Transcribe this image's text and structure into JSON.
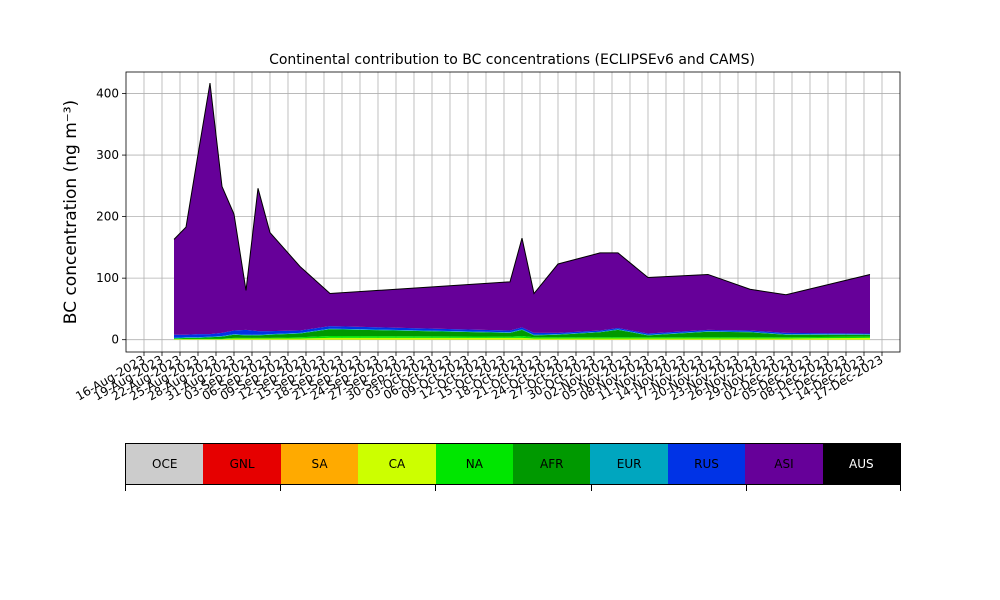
{
  "chart_data": {
    "type": "area",
    "stacked": true,
    "title": "Continental contribution to BC concentrations (ECLIPSEv6 and CAMS)",
    "ylabel": "BC concentration (ng m⁻³)",
    "xlabel": "",
    "ylim": [
      -20,
      435
    ],
    "xlim": [
      "2023-08-13",
      "2023-12-20"
    ],
    "grid": true,
    "yticks": [
      0,
      100,
      200,
      300,
      400
    ],
    "xtick_labels": [
      "16-Aug-2023",
      "19-Aug-2023",
      "22-Aug-2023",
      "25-Aug-2023",
      "28-Aug-2023",
      "31-Aug-2023",
      "03-Sep-2023",
      "06-Sep-2023",
      "09-Sep-2023",
      "12-Sep-2023",
      "15-Sep-2023",
      "18-Sep-2023",
      "21-Sep-2023",
      "24-Sep-2023",
      "27-Sep-2023",
      "30-Sep-2023",
      "03-Oct-2023",
      "06-Oct-2023",
      "09-Oct-2023",
      "12-Oct-2023",
      "15-Oct-2023",
      "18-Oct-2023",
      "21-Oct-2023",
      "24-Oct-2023",
      "27-Oct-2023",
      "30-Oct-2023",
      "02-Nov-2023",
      "05-Nov-2023",
      "08-Nov-2023",
      "11-Nov-2023",
      "14-Nov-2023",
      "17-Nov-2023",
      "20-Nov-2023",
      "23-Nov-2023",
      "26-Nov-2023",
      "29-Nov-2023",
      "02-Dec-2023",
      "05-Dec-2023",
      "08-Dec-2023",
      "11-Dec-2023",
      "14-Dec-2023",
      "17-Dec-2023"
    ],
    "x": [
      "2023-08-21",
      "2023-08-23",
      "2023-08-25",
      "2023-08-27",
      "2023-08-29",
      "2023-08-31",
      "2023-09-02",
      "2023-09-04",
      "2023-09-06",
      "2023-09-11",
      "2023-09-16",
      "2023-10-16",
      "2023-10-18",
      "2023-10-20",
      "2023-10-24",
      "2023-10-31",
      "2023-11-03",
      "2023-11-08",
      "2023-11-18",
      "2023-11-25",
      "2023-12-01",
      "2023-12-15"
    ],
    "series": [
      {
        "name": "OCE",
        "color": "#cccccc",
        "values": [
          0,
          0,
          0,
          0,
          0,
          0,
          0,
          0,
          0,
          0,
          0,
          0,
          0,
          0,
          0,
          0,
          0,
          0,
          0,
          0,
          0,
          0
        ]
      },
      {
        "name": "GNL",
        "color": "#e60000",
        "values": [
          0,
          0,
          0,
          0,
          0,
          0,
          0,
          0,
          0,
          0,
          0,
          0,
          0,
          0,
          0,
          0,
          0,
          0,
          0,
          0,
          0,
          0
        ]
      },
      {
        "name": "SA",
        "color": "#ffaa00",
        "values": [
          0,
          0,
          0,
          0,
          0,
          0,
          0,
          0,
          0,
          0,
          0,
          0,
          0,
          0,
          0,
          0,
          0,
          0,
          0,
          0,
          0,
          0
        ]
      },
      {
        "name": "CA",
        "color": "#ccff00",
        "values": [
          1,
          1,
          1,
          1,
          1,
          2,
          2,
          2,
          2,
          2,
          3,
          3,
          3,
          2,
          2,
          2,
          2,
          2,
          2,
          2,
          2,
          3
        ]
      },
      {
        "name": "NA",
        "color": "#00e600",
        "values": [
          1,
          1,
          1,
          1,
          1,
          1,
          1,
          1,
          1,
          2,
          3,
          2,
          3,
          2,
          2,
          2,
          2,
          2,
          2,
          2,
          2,
          2
        ]
      },
      {
        "name": "AFR",
        "color": "#009900",
        "values": [
          0,
          1,
          1,
          2,
          3,
          5,
          4,
          4,
          5,
          6,
          11,
          6,
          10,
          3,
          4,
          8,
          12,
          3,
          9,
          8,
          4,
          3
        ]
      },
      {
        "name": "EUR",
        "color": "#00a6bf",
        "values": [
          1,
          1,
          1,
          1,
          1,
          1,
          1,
          1,
          1,
          1,
          1,
          1,
          1,
          1,
          1,
          1,
          1,
          1,
          1,
          1,
          1,
          1
        ]
      },
      {
        "name": "RUS",
        "color": "#0033e6",
        "values": [
          5,
          4,
          5,
          4,
          5,
          6,
          8,
          6,
          5,
          4,
          4,
          3,
          3,
          3,
          2,
          2,
          2,
          2,
          2,
          2,
          2,
          1
        ]
      },
      {
        "name": "ASI",
        "color": "#660099",
        "values": [
          155,
          175,
          292,
          408,
          238,
          189,
          64,
          232,
          160,
          104,
          53,
          79,
          145,
          64,
          112,
          126,
          122,
          91,
          90,
          67,
          62,
          96
        ]
      },
      {
        "name": "AUS",
        "color": "#000000",
        "values": [
          0,
          0,
          0,
          0,
          0,
          0,
          0,
          0,
          0,
          0,
          0,
          0,
          0,
          0,
          0,
          0,
          0,
          0,
          0,
          0,
          0,
          0
        ]
      }
    ]
  }
}
